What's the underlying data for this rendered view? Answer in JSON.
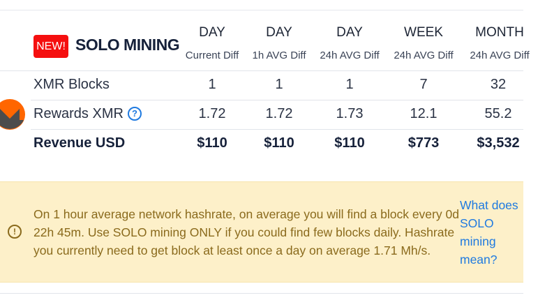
{
  "header": {
    "badge": "NEW!",
    "title": "SOLO MINING",
    "columns": [
      {
        "period": "DAY",
        "basis": "Current Diff"
      },
      {
        "period": "DAY",
        "basis": "1h AVG Diff"
      },
      {
        "period": "DAY",
        "basis": "24h AVG Diff"
      },
      {
        "period": "WEEK",
        "basis": "24h AVG Diff"
      },
      {
        "period": "MONTH",
        "basis": "24h AVG Diff"
      }
    ]
  },
  "coin": {
    "icon": "monero-logo",
    "color": "#ff6600"
  },
  "rows": [
    {
      "label": "XMR Blocks",
      "values": [
        "1",
        "1",
        "1",
        "7",
        "32"
      ]
    },
    {
      "label": "Rewards XMR",
      "help_icon": "question-circle-icon",
      "values": [
        "1.72",
        "1.72",
        "1.73",
        "12.1",
        "55.2"
      ]
    },
    {
      "label": "Revenue USD",
      "values": [
        "$110",
        "$110",
        "$110",
        "$773",
        "$3,532"
      ]
    }
  ],
  "alert": {
    "icon": "exclamation-circle-icon",
    "text": "On 1 hour average network hashrate, on average you will find a block every 0d 22h 45m. Use SOLO mining ONLY if you could find few blocks daily. Hashrate you currently need to get block at least once a day on average 1.71 Mh/s.",
    "link": "What does SOLO mining mean?"
  }
}
